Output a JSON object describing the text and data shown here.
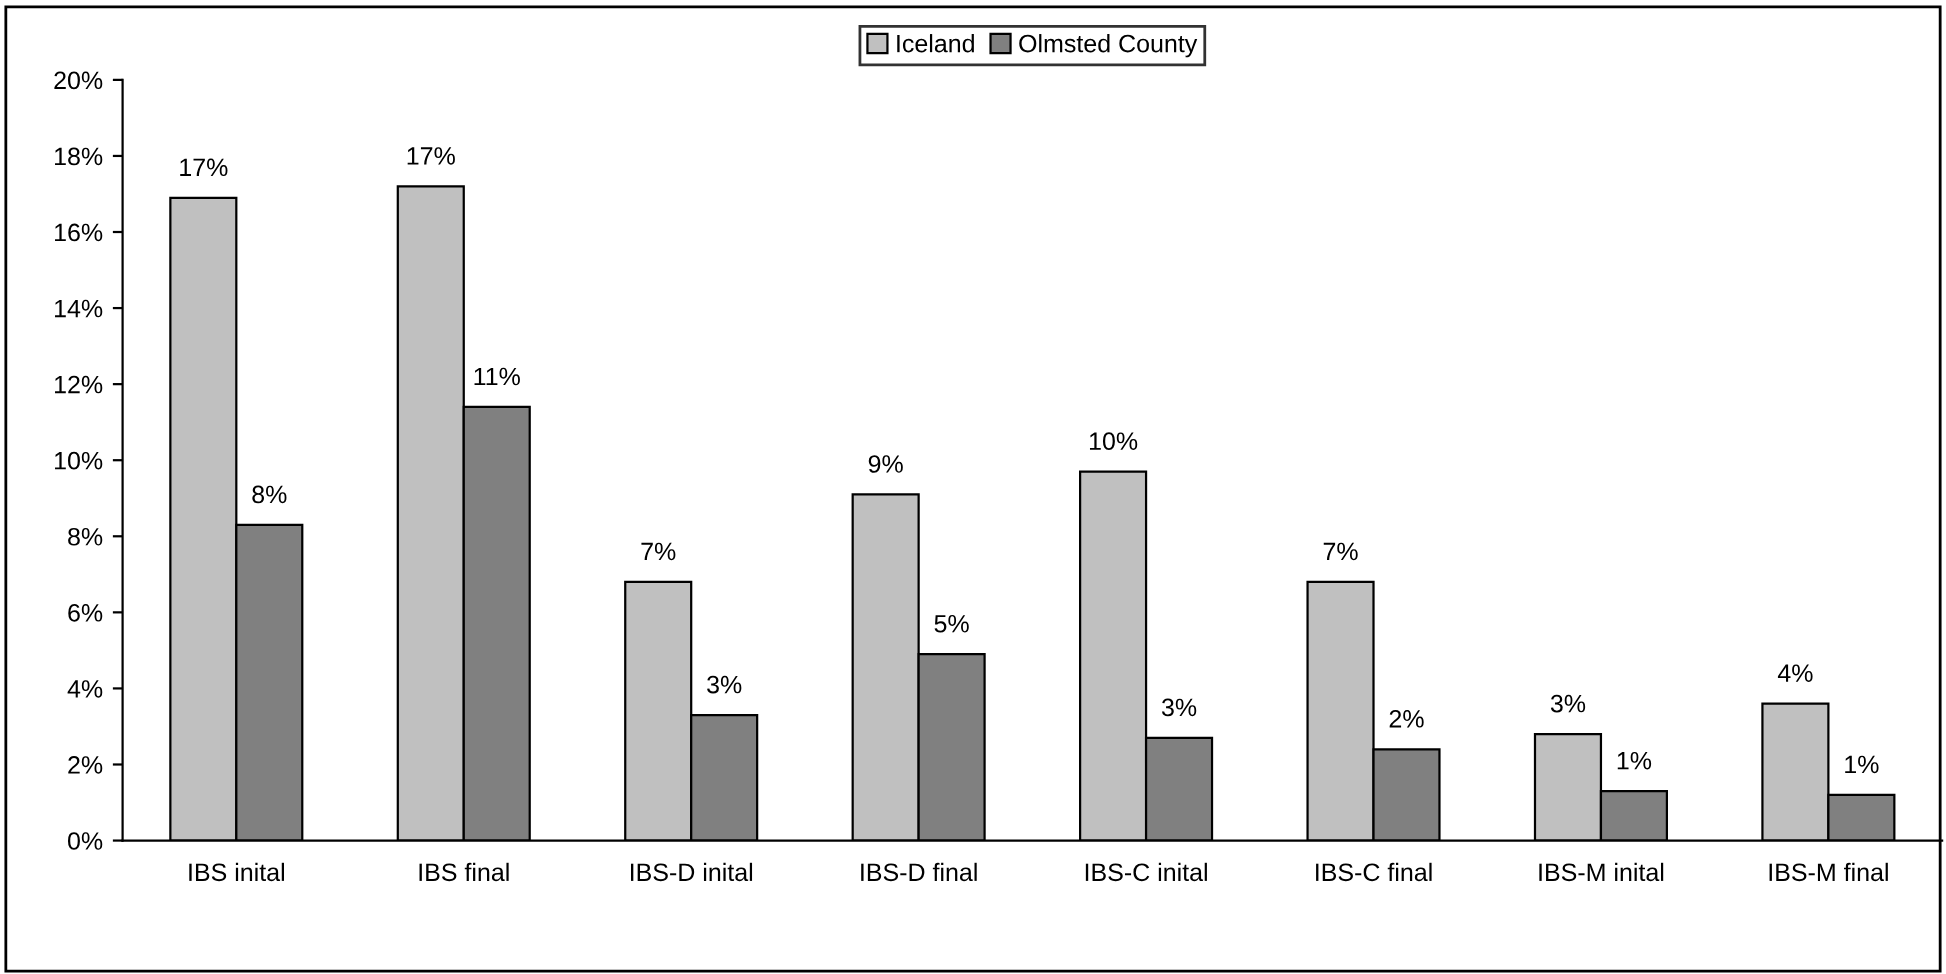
{
  "chart_data": {
    "type": "bar",
    "categories": [
      "IBS inital",
      "IBS final",
      "IBS-D inital",
      "IBS-D final",
      "IBS-C inital",
      "IBS-C final",
      "IBS-M inital",
      "IBS-M final"
    ],
    "series": [
      {
        "name": "Iceland",
        "color": "#c0c0c0",
        "values": [
          16.9,
          17.2,
          6.8,
          9.1,
          9.7,
          6.8,
          2.8,
          3.6
        ],
        "value_labels": [
          "17%",
          "17%",
          "7%",
          "9%",
          "10%",
          "7%",
          "3%",
          "4%"
        ]
      },
      {
        "name": "Olmsted County",
        "color": "#808080",
        "values": [
          8.3,
          11.4,
          3.3,
          4.9,
          2.7,
          2.4,
          1.3,
          1.2
        ],
        "value_labels": [
          "8%",
          "11%",
          "3%",
          "5%",
          "3%",
          "2%",
          "1%",
          "1%"
        ]
      }
    ],
    "ylim": [
      0,
      20
    ],
    "yticks": [
      {
        "value": 0,
        "label": "0%"
      },
      {
        "value": 2,
        "label": "2%"
      },
      {
        "value": 4,
        "label": "4%"
      },
      {
        "value": 6,
        "label": "6%"
      },
      {
        "value": 8,
        "label": "8%"
      },
      {
        "value": 10,
        "label": "10%"
      },
      {
        "value": 12,
        "label": "12%"
      },
      {
        "value": 14,
        "label": "14%"
      },
      {
        "value": 16,
        "label": "16%"
      },
      {
        "value": 18,
        "label": "18%"
      },
      {
        "value": 20,
        "label": "20%"
      }
    ],
    "legend": "top",
    "grid": false
  }
}
